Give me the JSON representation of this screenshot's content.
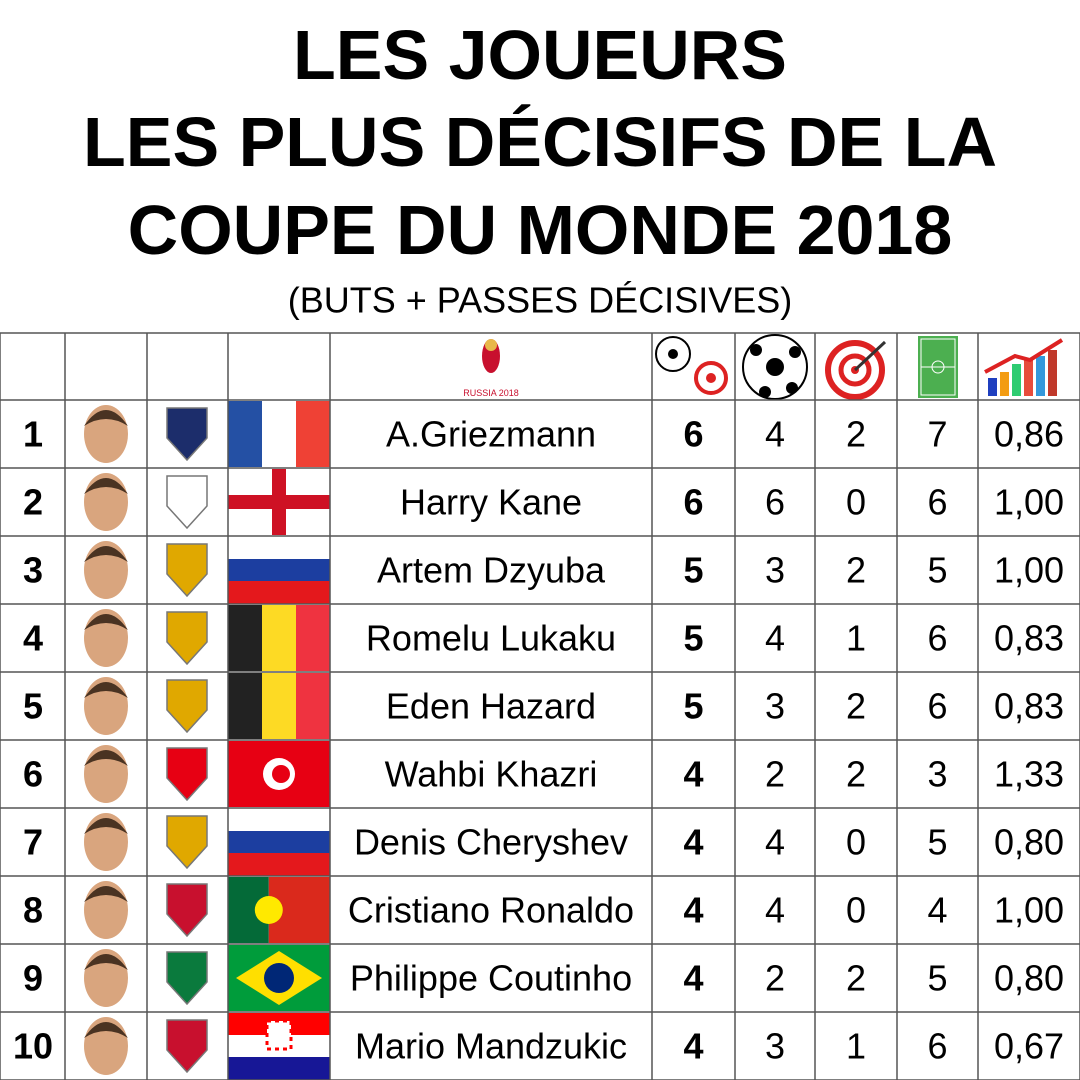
{
  "header": {
    "title_lines": [
      "LES JOUEURS",
      "LES PLUS DÉCISIFS DE LA",
      "COUPE DU MONDE 2018"
    ],
    "subtitle": "(BUTS + PASSES DÉCISIVES)",
    "logo_text": "RUSSIA 2018"
  },
  "table": {
    "rows": [
      {
        "rank": 1,
        "player": "A.Griezmann",
        "decisive": 6,
        "goals": 4,
        "assists": 2,
        "matches": 7,
        "ratio": "0,86"
      },
      {
        "rank": 2,
        "player": "Harry Kane",
        "decisive": 6,
        "goals": 6,
        "assists": 0,
        "matches": 6,
        "ratio": "1,00"
      },
      {
        "rank": 3,
        "player": "Artem Dzyuba",
        "decisive": 5,
        "goals": 3,
        "assists": 2,
        "matches": 5,
        "ratio": "1,00"
      },
      {
        "rank": 4,
        "player": "Romelu Lukaku",
        "decisive": 5,
        "goals": 4,
        "assists": 1,
        "matches": 6,
        "ratio": "0,83"
      },
      {
        "rank": 5,
        "player": "Eden Hazard",
        "decisive": 5,
        "goals": 3,
        "assists": 2,
        "matches": 6,
        "ratio": "0,83"
      },
      {
        "rank": 6,
        "player": "Wahbi Khazri",
        "decisive": 4,
        "goals": 2,
        "assists": 2,
        "matches": 3,
        "ratio": "1,33"
      },
      {
        "rank": 7,
        "player": "Denis Cheryshev",
        "decisive": 4,
        "goals": 4,
        "assists": 0,
        "matches": 5,
        "ratio": "0,80"
      },
      {
        "rank": 8,
        "player": "Cristiano Ronaldo",
        "decisive": 4,
        "goals": 4,
        "assists": 0,
        "matches": 4,
        "ratio": "1,00"
      },
      {
        "rank": 9,
        "player": "Philippe Coutinho",
        "decisive": 4,
        "goals": 2,
        "assists": 2,
        "matches": 5,
        "ratio": "0,80"
      },
      {
        "rank": 10,
        "player": "Mario Mandzukic",
        "decisive": 4,
        "goals": 3,
        "assists": 1,
        "matches": 6,
        "ratio": "0,67"
      }
    ]
  }
}
